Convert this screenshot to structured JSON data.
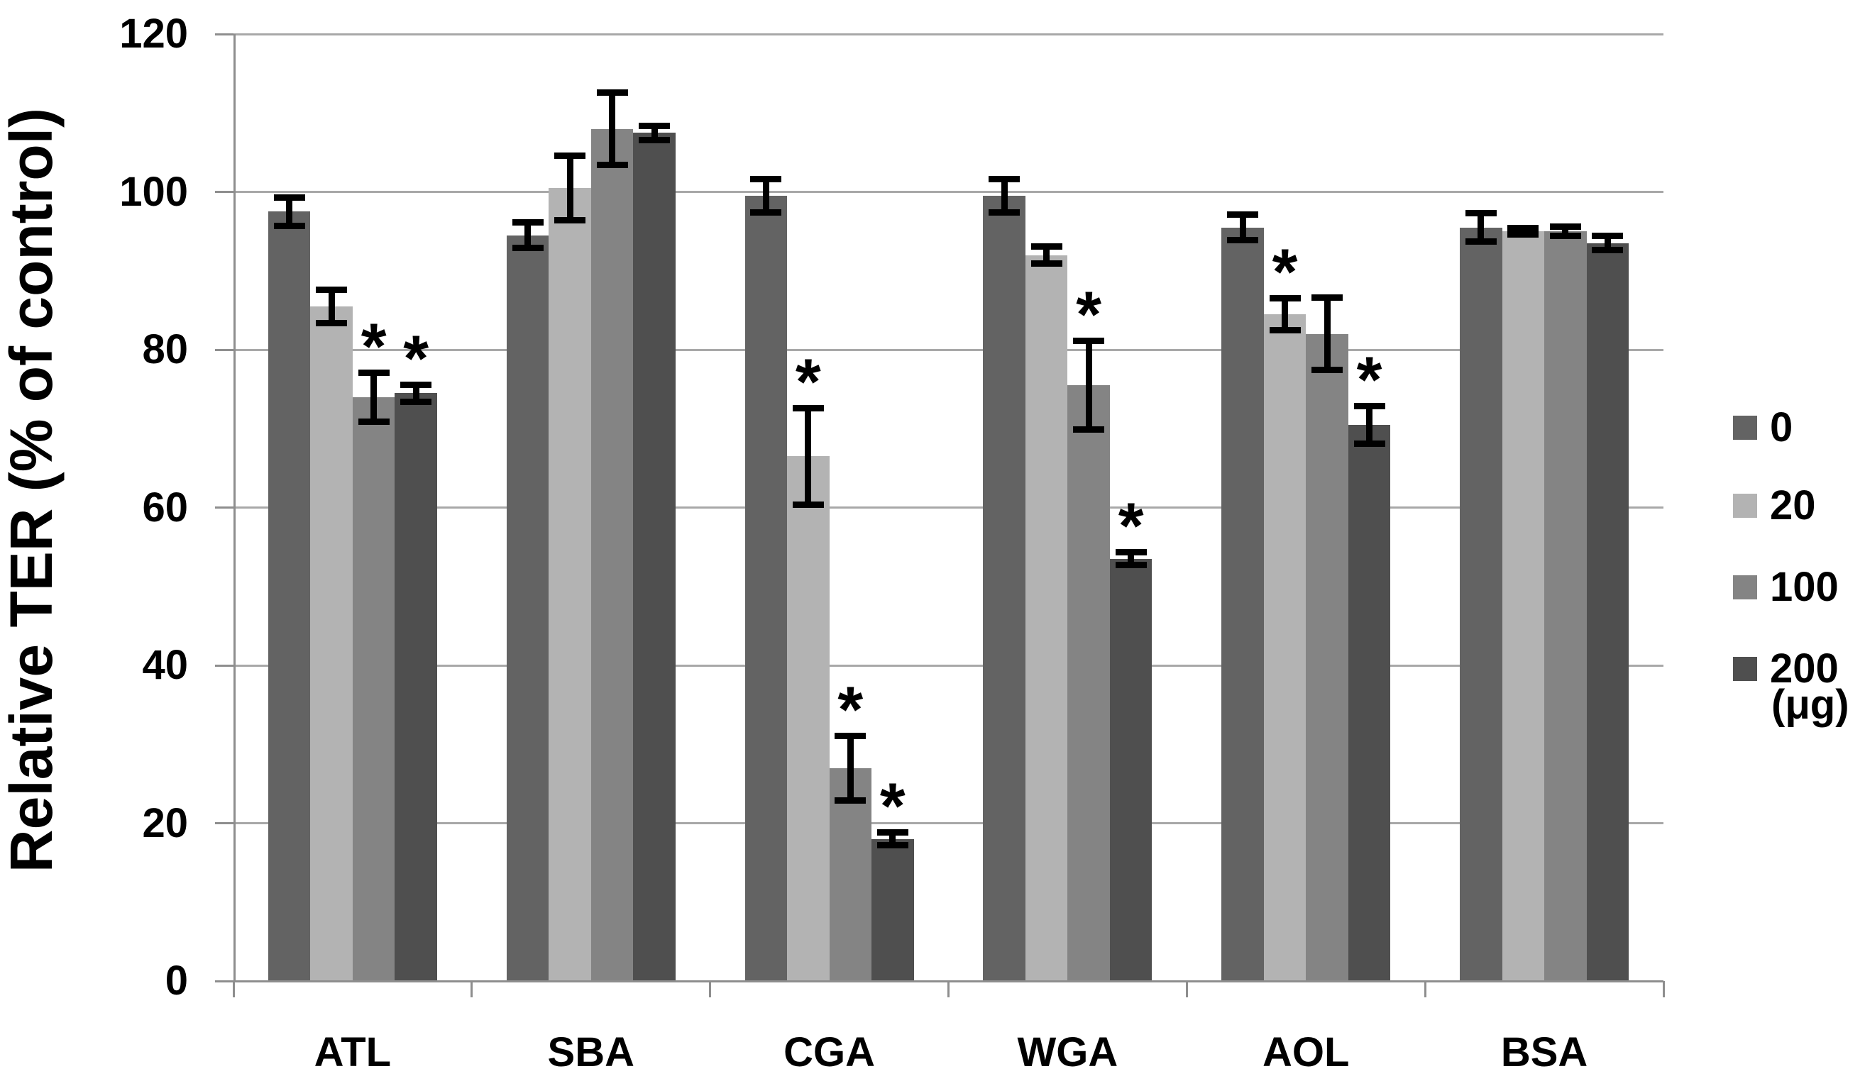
{
  "chart_data": {
    "type": "bar",
    "title": "",
    "xlabel": "",
    "ylabel": "Relative TER (% of control)",
    "ylim": [
      0,
      120
    ],
    "yticks": [
      0,
      20,
      40,
      60,
      80,
      100,
      120
    ],
    "grid": true,
    "legend_position": "right",
    "legend_title_unit": "(μg)",
    "significance_marker": "*",
    "error_bars": "plus-minus, black caps",
    "categories": [
      "ATL",
      "SBA",
      "CGA",
      "WGA",
      "AOL",
      "BSA"
    ],
    "series": [
      {
        "name": "0",
        "color": "#636363",
        "values": [
          97.5,
          94.5,
          99.5,
          99.5,
          95.5,
          95.5
        ],
        "errors": [
          2.2,
          2.0,
          2.5,
          2.5,
          2.0,
          2.2
        ],
        "significant": [
          false,
          false,
          false,
          false,
          false,
          false
        ]
      },
      {
        "name": "20",
        "color": "#b3b3b3",
        "values": [
          85.5,
          100.5,
          66.5,
          92.0,
          84.5,
          95.0
        ],
        "errors": [
          2.5,
          4.5,
          6.5,
          1.5,
          2.4,
          0.8
        ],
        "significant": [
          false,
          false,
          true,
          false,
          true,
          false
        ]
      },
      {
        "name": "100",
        "color": "#848484",
        "values": [
          74.0,
          108.0,
          27.0,
          75.5,
          82.0,
          95.0
        ],
        "errors": [
          3.5,
          5.0,
          4.5,
          6.0,
          5.0,
          1.0
        ],
        "significant": [
          true,
          false,
          true,
          true,
          false,
          false
        ]
      },
      {
        "name": "200",
        "color": "#4f4f4f",
        "values": [
          74.5,
          107.5,
          18.0,
          53.5,
          70.5,
          93.5
        ],
        "errors": [
          1.5,
          1.3,
          1.2,
          1.2,
          2.8,
          1.3
        ],
        "significant": [
          true,
          false,
          true,
          true,
          true,
          false
        ]
      }
    ]
  }
}
